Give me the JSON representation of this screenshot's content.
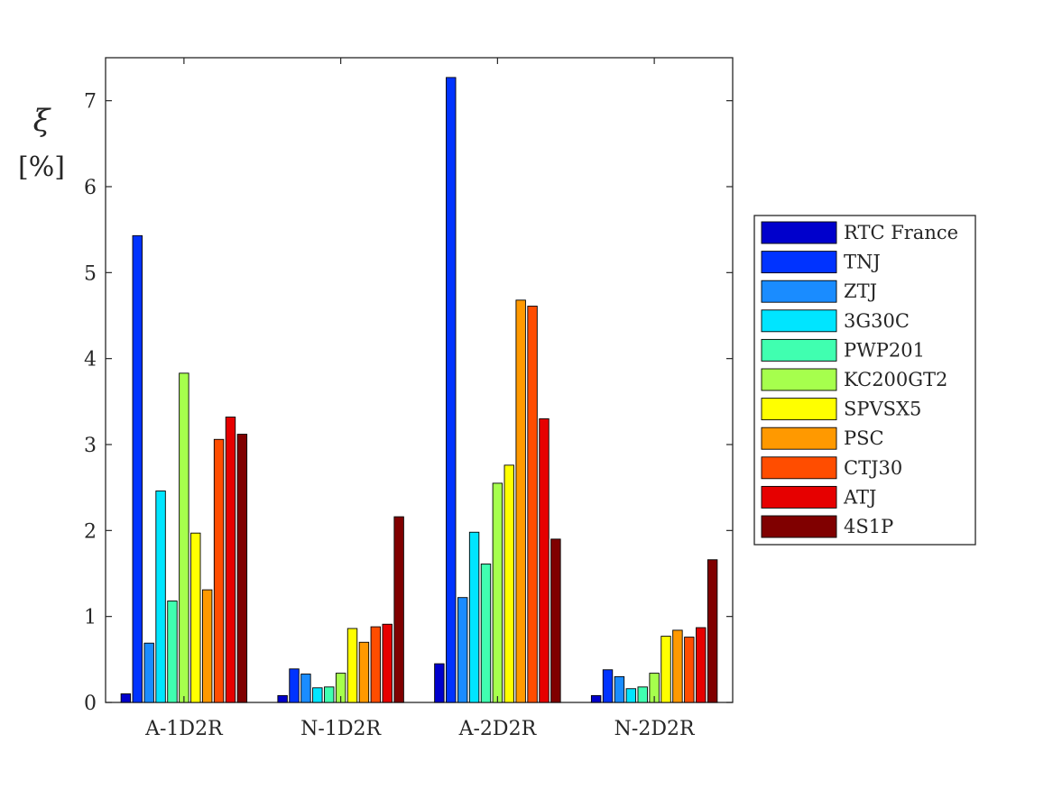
{
  "chart_data": {
    "type": "bar",
    "title": "",
    "xlabel": "",
    "ylabel": "ξ",
    "ylabel_unit": "[%]",
    "categories": [
      "A-1D2R",
      "N-1D2R",
      "A-2D2R",
      "N-2D2R"
    ],
    "ylim": [
      0,
      7.5
    ],
    "yticks": [
      0,
      1,
      2,
      3,
      4,
      5,
      6,
      7
    ],
    "grid": false,
    "legend_position": "right",
    "series": [
      {
        "name": "RTC France",
        "color": "#0000CC",
        "values": [
          0.1,
          0.08,
          0.45,
          0.08
        ]
      },
      {
        "name": "TNJ",
        "color": "#0033FF",
        "values": [
          5.43,
          0.39,
          7.27,
          0.38
        ]
      },
      {
        "name": "ZTJ",
        "color": "#1A8CFF",
        "values": [
          0.69,
          0.33,
          1.22,
          0.3
        ]
      },
      {
        "name": "3G30C",
        "color": "#00E5FF",
        "values": [
          2.46,
          0.17,
          1.98,
          0.16
        ]
      },
      {
        "name": "PWP201",
        "color": "#40FFB0",
        "values": [
          1.18,
          0.18,
          1.61,
          0.18
        ]
      },
      {
        "name": "KC200GT2",
        "color": "#A6FF4D",
        "values": [
          3.83,
          0.34,
          2.55,
          0.34
        ]
      },
      {
        "name": "SPVSX5",
        "color": "#FFFF00",
        "values": [
          1.97,
          0.86,
          2.76,
          0.77
        ]
      },
      {
        "name": "PSC",
        "color": "#FF9900",
        "values": [
          1.31,
          0.7,
          4.68,
          0.84
        ]
      },
      {
        "name": "CTJ30",
        "color": "#FF4D00",
        "values": [
          3.06,
          0.88,
          4.61,
          0.76
        ]
      },
      {
        "name": "ATJ",
        "color": "#E60000",
        "values": [
          3.32,
          0.91,
          3.3,
          0.87
        ]
      },
      {
        "name": "4S1P",
        "color": "#800000",
        "values": [
          3.12,
          2.16,
          1.9,
          1.66
        ]
      }
    ]
  }
}
